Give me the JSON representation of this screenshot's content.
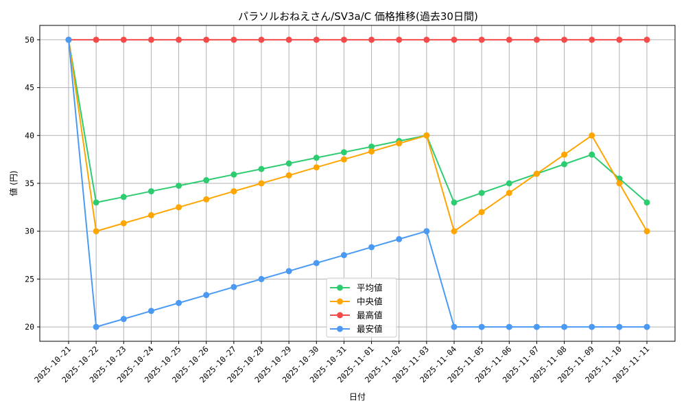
{
  "chart_data": {
    "type": "line",
    "title": "パラソルおねえさん/SV3a/C 価格推移(過去30日間)",
    "xlabel": "日付",
    "ylabel": "値 (円)",
    "ylim": [
      18.5,
      51.5
    ],
    "yticks": [
      20,
      25,
      30,
      35,
      40,
      45,
      50
    ],
    "grid": true,
    "legend_position": "lower center",
    "x": [
      "2025-10-21",
      "2025-10-22",
      "2025-10-23",
      "2025-10-24",
      "2025-10-25",
      "2025-10-26",
      "2025-10-27",
      "2025-10-28",
      "2025-10-29",
      "2025-10-30",
      "2025-10-31",
      "2025-11-01",
      "2025-11-02",
      "2025-11-03",
      "2025-11-04",
      "2025-11-05",
      "2025-11-06",
      "2025-11-07",
      "2025-11-08",
      "2025-11-09",
      "2025-11-10",
      "2025-11-11"
    ],
    "series": [
      {
        "name": "平均値",
        "color": "#2ecc71",
        "values": [
          50,
          33,
          33.58,
          34.17,
          34.75,
          35.33,
          35.92,
          36.5,
          37.08,
          37.67,
          38.25,
          38.83,
          39.42,
          40,
          33,
          34,
          35,
          36,
          37,
          38,
          35.5,
          33
        ]
      },
      {
        "name": "中央値",
        "color": "#ffa500",
        "values": [
          50,
          30,
          30.83,
          31.67,
          32.5,
          33.33,
          34.17,
          35,
          35.83,
          36.67,
          37.5,
          38.33,
          39.17,
          40,
          30,
          32,
          34,
          36,
          38,
          40,
          35,
          30
        ]
      },
      {
        "name": "最高値",
        "color": "#f44a4a",
        "values": [
          50,
          50,
          50,
          50,
          50,
          50,
          50,
          50,
          50,
          50,
          50,
          50,
          50,
          50,
          50,
          50,
          50,
          50,
          50,
          50,
          50,
          50
        ]
      },
      {
        "name": "最安値",
        "color": "#4a9af4",
        "values": [
          50,
          20,
          20.83,
          21.67,
          22.5,
          23.33,
          24.17,
          25,
          25.83,
          26.67,
          27.5,
          28.33,
          29.17,
          30,
          20,
          20,
          20,
          20,
          20,
          20,
          20,
          20
        ]
      }
    ]
  }
}
